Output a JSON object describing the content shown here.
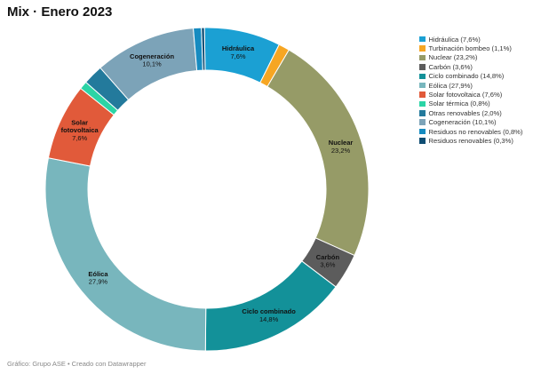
{
  "chart_data": {
    "type": "pie",
    "title": "Mix · Enero 2023",
    "legend_position": "right",
    "slices": [
      {
        "name": "Hidráulica",
        "value": 7.6,
        "color": "#1ba0d3",
        "legend": "Hidráulica (7,6%)",
        "label": [
          "Hidráulica",
          "7,6%"
        ]
      },
      {
        "name": "Turbinación bombeo",
        "value": 1.1,
        "color": "#f6a623",
        "legend": "Turbinación bombeo (1,1%)",
        "label": null
      },
      {
        "name": "Nuclear",
        "value": 23.2,
        "color": "#969b67",
        "legend": "Nuclear (23,2%)",
        "label": [
          "Nuclear",
          "23,2%"
        ]
      },
      {
        "name": "Carbón",
        "value": 3.6,
        "color": "#5c5c5c",
        "legend": "Carbón (3,6%)",
        "label": [
          "Carbón",
          "3,6%"
        ]
      },
      {
        "name": "Ciclo combinado",
        "value": 14.8,
        "color": "#139199",
        "legend": "Ciclo combinado (14,8%)",
        "label": [
          "Ciclo combinado",
          "14,8%"
        ]
      },
      {
        "name": "Eólica",
        "value": 27.9,
        "color": "#78b6bd",
        "legend": "Eólica (27,9%)",
        "label": [
          "Eólica",
          "27,9%"
        ]
      },
      {
        "name": "Solar fotovoltaica",
        "value": 7.6,
        "color": "#e15a3a",
        "legend": "Solar fotovoltaica (7,6%)",
        "label": [
          "Solar",
          "fotovoltaica",
          "7,6%"
        ]
      },
      {
        "name": "Solar térmica",
        "value": 0.8,
        "color": "#2bd4a5",
        "legend": "Solar térmica (0,8%)",
        "label": null
      },
      {
        "name": "Otras renovables",
        "value": 2.0,
        "color": "#237a9c",
        "legend": "Otras renovables (2,0%)",
        "label": null
      },
      {
        "name": "Cogeneración",
        "value": 10.1,
        "color": "#7ca3b8",
        "legend": "Cogeneración (10,1%)",
        "label": [
          "Cogeneración",
          "10,1%"
        ]
      },
      {
        "name": "Residuos no renovables",
        "value": 0.8,
        "color": "#168bc0",
        "legend": "Residuos no renovables  (0,8%)",
        "label": null
      },
      {
        "name": "Residuos renovables",
        "value": 0.3,
        "color": "#0f4d73",
        "legend": "Residuos renovables (0,3%)",
        "label": null
      }
    ]
  },
  "footer": {
    "source": "Gráfico: Grupo ASE • Creado con Datawrapper"
  }
}
